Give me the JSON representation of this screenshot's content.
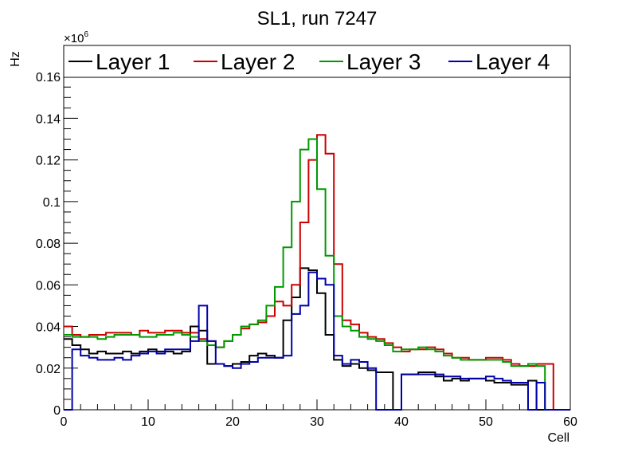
{
  "chart_data": {
    "type": "line",
    "title": "SL1, run 7247",
    "xlabel": "Cell",
    "ylabel": "Hz",
    "exponent_label": "×10",
    "exponent_power": "6",
    "xlim": [
      0,
      60
    ],
    "ylim": [
      0,
      0.175
    ],
    "x_ticks": [
      0,
      10,
      20,
      30,
      40,
      50,
      60
    ],
    "x_tick_labels": [
      "0",
      "10",
      "20",
      "30",
      "40",
      "50",
      "60"
    ],
    "y_ticks": [
      0,
      0.02,
      0.04,
      0.06,
      0.08,
      0.1,
      0.12,
      0.14,
      0.16
    ],
    "y_tick_labels": [
      "0",
      "0.02",
      "0.04",
      "0.06",
      "0.08",
      "0.1",
      "0.12",
      "0.14",
      "0.16"
    ],
    "grid": false,
    "legend_position": "top",
    "bin_width": 1,
    "x_start": 0,
    "series": [
      {
        "name": "Layer 1",
        "color": "#000000",
        "values": [
          0.034,
          0.031,
          0.029,
          0.027,
          0.028,
          0.027,
          0.027,
          0.028,
          0.027,
          0.028,
          0.029,
          0.028,
          0.028,
          0.027,
          0.028,
          0.04,
          0.038,
          0.022,
          0.022,
          0.021,
          0.022,
          0.023,
          0.026,
          0.027,
          0.026,
          0.025,
          0.043,
          0.054,
          0.068,
          0.067,
          0.056,
          0.036,
          0.024,
          0.021,
          0.022,
          0.02,
          0.019,
          0.018,
          0.018,
          0.0,
          0.017,
          0.017,
          0.018,
          0.018,
          0.016,
          0.014,
          0.015,
          0.014,
          0.015,
          0.015,
          0.014,
          0.013,
          0.013,
          0.012,
          0.012,
          0.014,
          0,
          0,
          0,
          0
        ]
      },
      {
        "name": "Layer 2",
        "color": "#cc0000",
        "values": [
          0.04,
          0.036,
          0.035,
          0.036,
          0.036,
          0.037,
          0.037,
          0.037,
          0.036,
          0.038,
          0.037,
          0.037,
          0.038,
          0.038,
          0.037,
          0.037,
          0.034,
          0.033,
          0.03,
          0.033,
          0.036,
          0.039,
          0.041,
          0.042,
          0.045,
          0.052,
          0.05,
          0.06,
          0.09,
          0.12,
          0.132,
          0.123,
          0.07,
          0.043,
          0.041,
          0.037,
          0.035,
          0.034,
          0.032,
          0.03,
          0.028,
          0.029,
          0.029,
          0.03,
          0.029,
          0.027,
          0.025,
          0.025,
          0.024,
          0.024,
          0.025,
          0.025,
          0.024,
          0.022,
          0.021,
          0.021,
          0.022,
          0.022,
          0,
          0
        ]
      },
      {
        "name": "Layer 3",
        "color": "#009900",
        "values": [
          0.036,
          0.035,
          0.035,
          0.035,
          0.034,
          0.035,
          0.036,
          0.036,
          0.036,
          0.035,
          0.035,
          0.036,
          0.036,
          0.037,
          0.036,
          0.035,
          0.033,
          0.031,
          0.03,
          0.033,
          0.036,
          0.04,
          0.041,
          0.043,
          0.05,
          0.059,
          0.078,
          0.1,
          0.125,
          0.13,
          0.106,
          0.074,
          0.045,
          0.04,
          0.038,
          0.035,
          0.034,
          0.033,
          0.031,
          0.028,
          0.029,
          0.029,
          0.03,
          0.029,
          0.028,
          0.026,
          0.025,
          0.024,
          0.024,
          0.024,
          0.024,
          0.024,
          0.023,
          0.021,
          0.021,
          0.022,
          0.021,
          0,
          0,
          0
        ]
      },
      {
        "name": "Layer 4",
        "color": "#0000aa",
        "values": [
          0.0,
          0.029,
          0.026,
          0.025,
          0.024,
          0.024,
          0.025,
          0.024,
          0.026,
          0.027,
          0.028,
          0.027,
          0.029,
          0.029,
          0.029,
          0.033,
          0.05,
          0.033,
          0.022,
          0.021,
          0.02,
          0.022,
          0.023,
          0.025,
          0.025,
          0.025,
          0.026,
          0.046,
          0.05,
          0.066,
          0.063,
          0.06,
          0.026,
          0.022,
          0.024,
          0.023,
          0.02,
          0.0,
          0.0,
          0.0,
          0.017,
          0.017,
          0.017,
          0.017,
          0.017,
          0.016,
          0.016,
          0.015,
          0.015,
          0.015,
          0.016,
          0.015,
          0.014,
          0.013,
          0.013,
          0.0,
          0.013,
          0,
          0,
          0
        ]
      }
    ]
  }
}
